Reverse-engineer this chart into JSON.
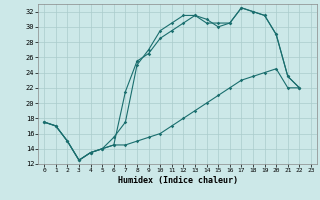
{
  "xlabel": "Humidex (Indice chaleur)",
  "bg_color": "#cce8e8",
  "grid_color": "#aacccc",
  "line_color": "#1a6e6e",
  "xlim": [
    -0.5,
    23.5
  ],
  "ylim": [
    12,
    33
  ],
  "xticks": [
    0,
    1,
    2,
    3,
    4,
    5,
    6,
    7,
    8,
    9,
    10,
    11,
    12,
    13,
    14,
    15,
    16,
    17,
    18,
    19,
    20,
    21,
    22,
    23
  ],
  "yticks": [
    12,
    14,
    16,
    18,
    20,
    22,
    24,
    26,
    28,
    30,
    32
  ],
  "curve1_x": [
    0,
    1,
    2,
    3,
    4,
    5,
    6,
    7,
    8,
    9,
    10,
    11,
    12,
    13,
    14,
    15,
    16,
    17,
    18,
    19,
    20,
    21,
    22
  ],
  "curve1_y": [
    17.5,
    17.0,
    15.0,
    12.5,
    13.5,
    14.0,
    15.5,
    17.5,
    25.0,
    27.0,
    29.5,
    30.5,
    31.5,
    31.5,
    30.5,
    30.5,
    30.5,
    32.5,
    32.0,
    31.5,
    29.0,
    23.5,
    22.0
  ],
  "curve2_x": [
    0,
    1,
    2,
    3,
    4,
    5,
    6,
    7,
    8,
    9,
    10,
    11,
    12,
    13,
    14,
    15,
    16,
    17,
    18,
    19,
    20,
    21,
    22
  ],
  "curve2_y": [
    17.5,
    17.0,
    15.0,
    12.5,
    13.5,
    14.0,
    14.5,
    21.5,
    25.5,
    26.5,
    28.5,
    29.5,
    30.5,
    31.5,
    31.0,
    30.0,
    30.5,
    32.5,
    32.0,
    31.5,
    29.0,
    23.5,
    22.0
  ],
  "curve3_x": [
    0,
    1,
    2,
    3,
    4,
    5,
    6,
    7,
    8,
    9,
    10,
    11,
    12,
    13,
    14,
    15,
    16,
    17,
    18,
    19,
    20,
    21,
    22
  ],
  "curve3_y": [
    17.5,
    17.0,
    15.0,
    12.5,
    13.5,
    14.0,
    14.5,
    14.5,
    15.0,
    15.5,
    16.0,
    17.0,
    18.0,
    19.0,
    20.0,
    21.0,
    22.0,
    23.0,
    23.5,
    24.0,
    24.5,
    22.0,
    22.0
  ]
}
